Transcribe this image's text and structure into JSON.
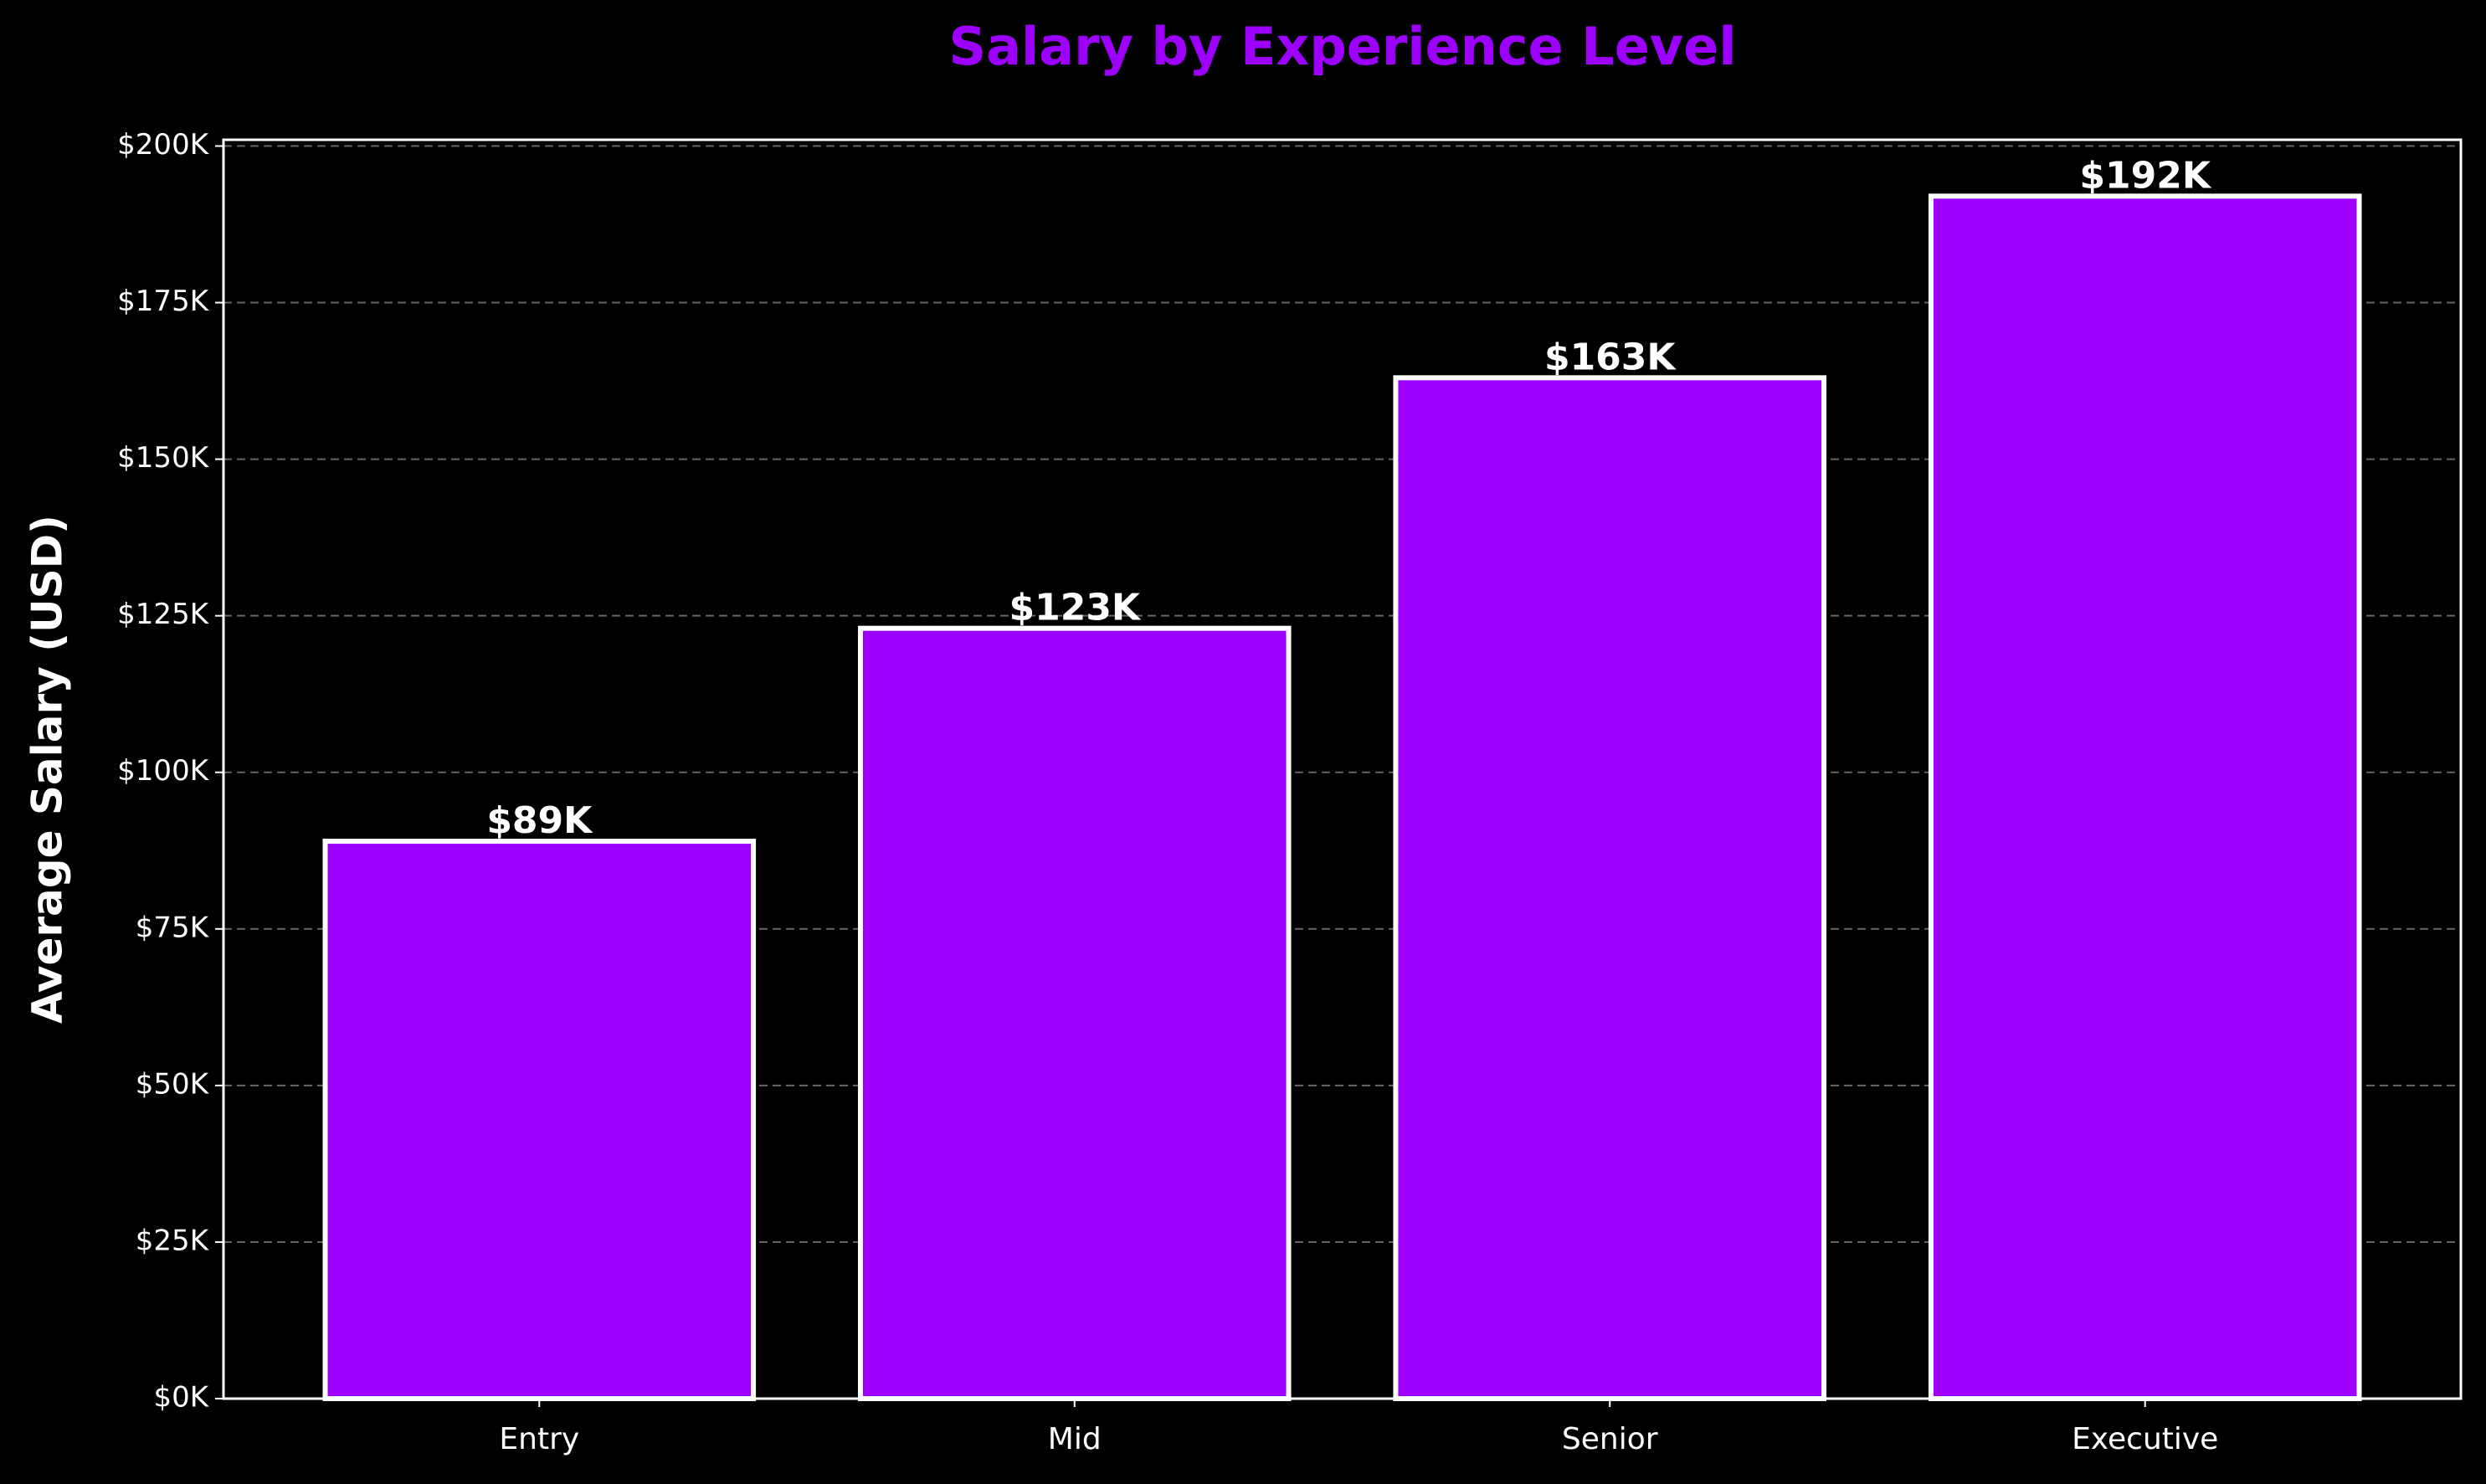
{
  "chart_data": {
    "type": "bar",
    "title": "Salary by Experience Level",
    "y_label": "Average Salary (USD)",
    "categories": [
      "Entry",
      "Mid",
      "Senior",
      "Executive"
    ],
    "values": [
      89000,
      123000,
      163000,
      192000
    ],
    "value_labels": [
      "$89K",
      "$123K",
      "$163K",
      "$192K"
    ],
    "color": "#9d00ff",
    "edge_color": "#ffffff",
    "title_color": "#9d00ff",
    "ylim": [
      0,
      201000
    ],
    "yticks": [
      {
        "value": 0,
        "label": "$0K"
      },
      {
        "value": 25000,
        "label": "$25K"
      },
      {
        "value": 50000,
        "label": "$50K"
      },
      {
        "value": 75000,
        "label": "$75K"
      },
      {
        "value": 100000,
        "label": "$100K"
      },
      {
        "value": 125000,
        "label": "$125K"
      },
      {
        "value": 150000,
        "label": "$150K"
      },
      {
        "value": 175000,
        "label": "$175K"
      },
      {
        "value": 200000,
        "label": "$200K"
      }
    ],
    "grid": true
  }
}
